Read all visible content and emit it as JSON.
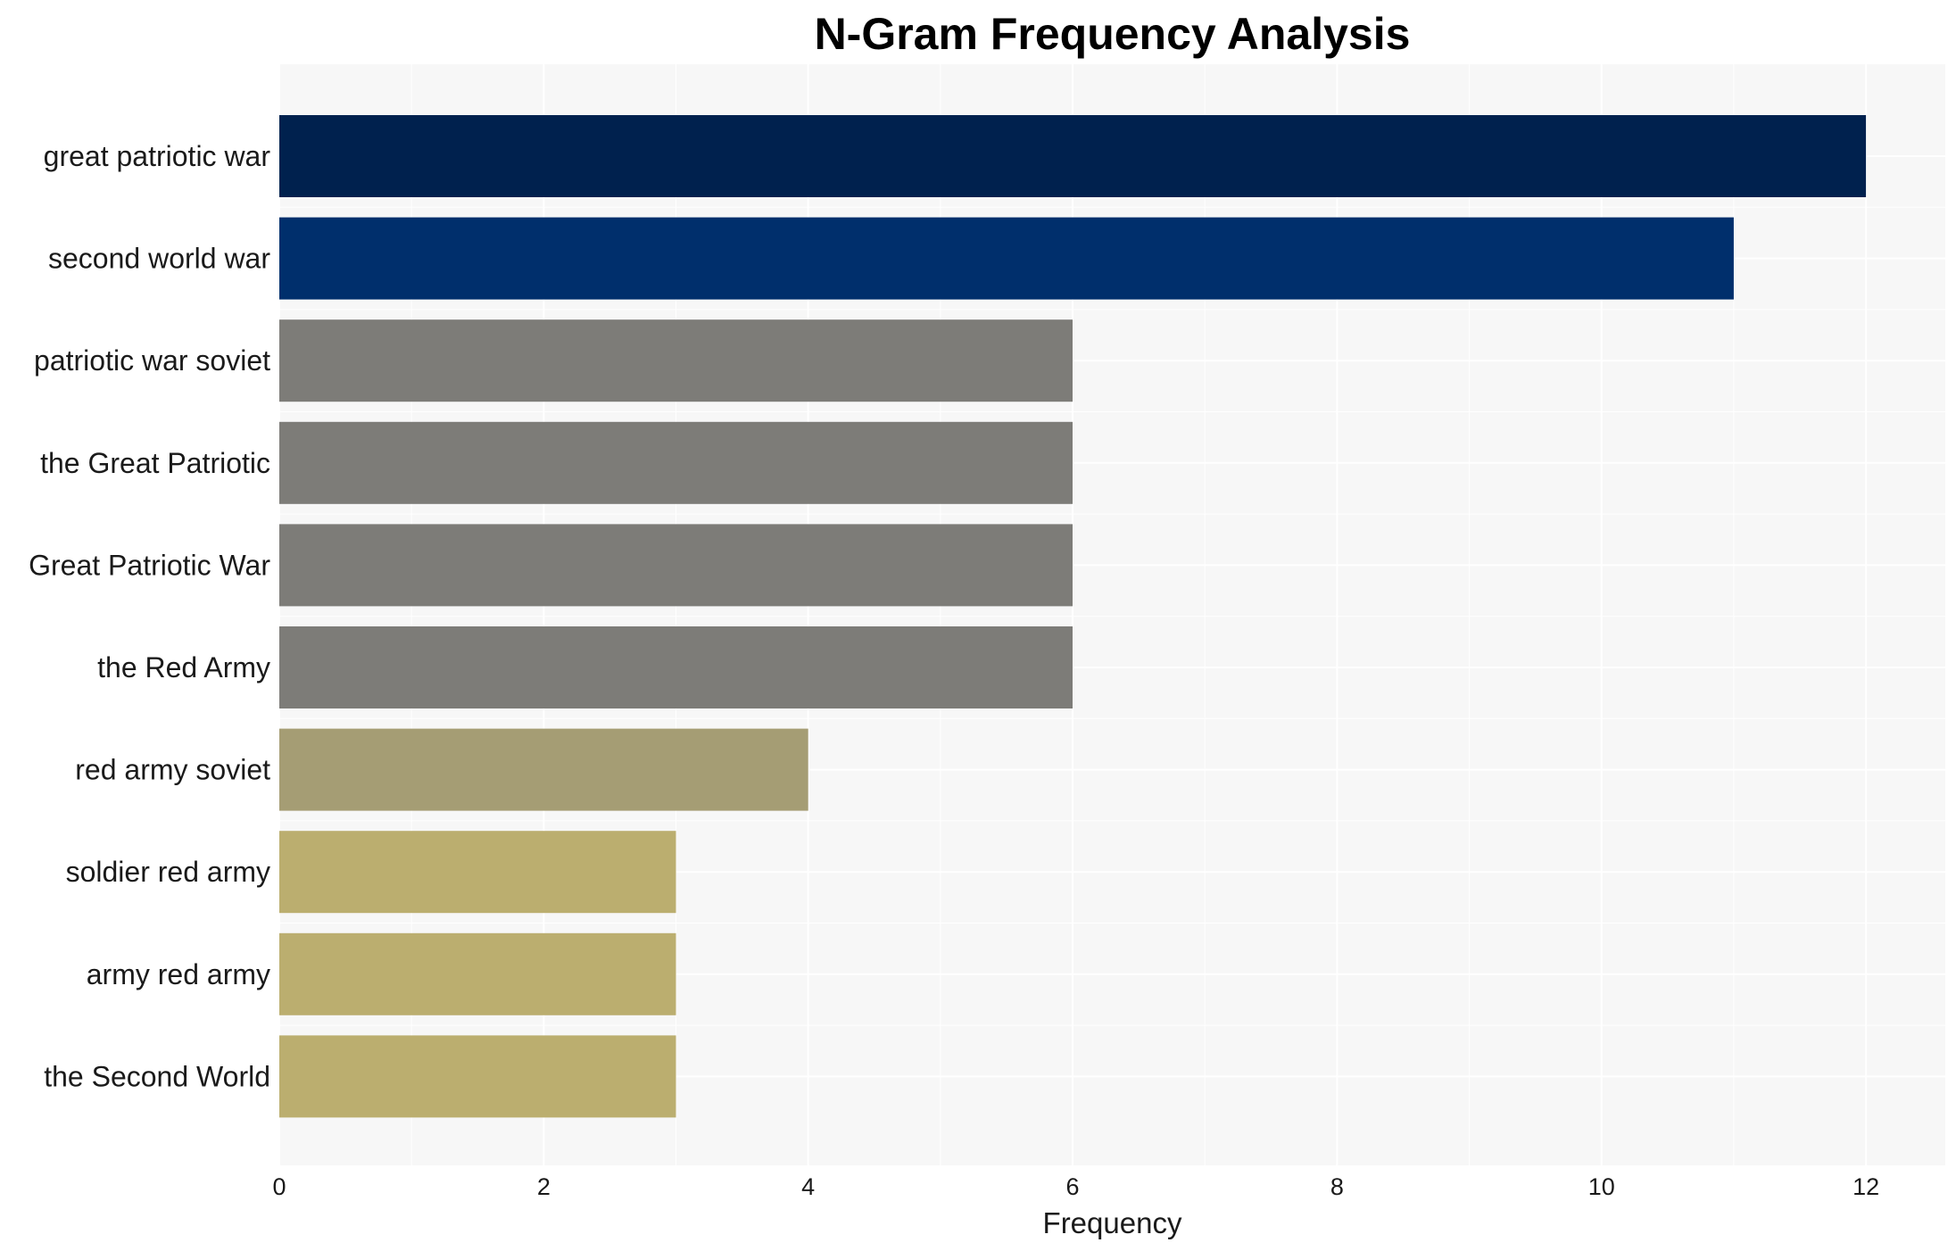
{
  "chart_data": {
    "type": "bar",
    "orientation": "horizontal",
    "title": "N-Gram Frequency Analysis",
    "xlabel": "Frequency",
    "ylabel": "",
    "xlim": [
      0,
      12.6
    ],
    "x_ticks": [
      0,
      2,
      4,
      6,
      8,
      10,
      12
    ],
    "grid": true,
    "categories": [
      "great patriotic war",
      "second world war",
      "patriotic war soviet",
      "the Great Patriotic",
      "Great Patriotic War",
      "the Red Army",
      "red army soviet",
      "soldier red army",
      "army red army",
      "the Second World"
    ],
    "values": [
      12,
      11,
      6,
      6,
      6,
      6,
      4,
      3,
      3,
      3
    ],
    "bar_colors": [
      "#00214e",
      "#002f6c",
      "#7d7c78",
      "#7d7c78",
      "#7d7c78",
      "#7d7c78",
      "#a59d74",
      "#bbae6f",
      "#bbae6f",
      "#bbae6f"
    ],
    "panel_color": "#f7f7f7",
    "grid_color": "#ffffff"
  }
}
